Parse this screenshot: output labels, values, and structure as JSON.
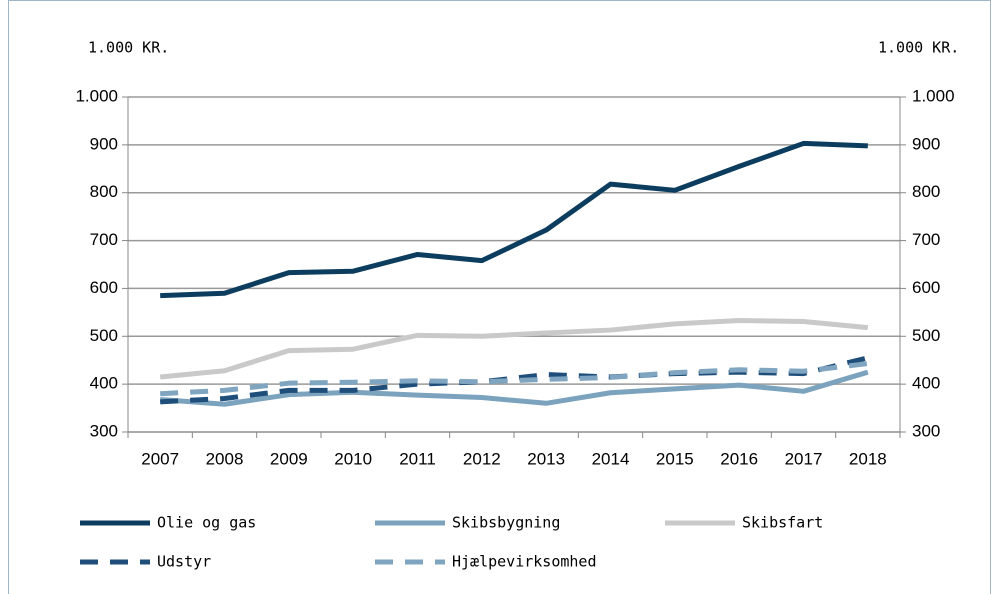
{
  "chart_data": {
    "type": "line",
    "y_unit_label": "1.000 KR.",
    "y2_unit_label": "1.000 KR.",
    "categories": [
      "2007",
      "2008",
      "2009",
      "2010",
      "2011",
      "2012",
      "2013",
      "2014",
      "2015",
      "2016",
      "2017",
      "2018"
    ],
    "series": [
      {
        "name": "Olie og gas",
        "color": "#0d3d5e",
        "dashed": false,
        "values": [
          585,
          590,
          633,
          636,
          671,
          658,
          722,
          818,
          805,
          855,
          903,
          898
        ]
      },
      {
        "name": "Skibsbygning",
        "color": "#7ba3be",
        "dashed": false,
        "values": [
          368,
          358,
          378,
          383,
          377,
          372,
          360,
          382,
          390,
          398,
          385,
          425
        ]
      },
      {
        "name": "Skibsfart",
        "color": "#c9c9c9",
        "dashed": false,
        "values": [
          415,
          428,
          470,
          473,
          502,
          500,
          507,
          513,
          526,
          533,
          531,
          518
        ]
      },
      {
        "name": "Udstyr",
        "color": "#1f4e7a",
        "dashed": true,
        "values": [
          363,
          370,
          387,
          387,
          400,
          405,
          420,
          415,
          422,
          425,
          422,
          455
        ]
      },
      {
        "name": "Hjælpevirksomhed",
        "color": "#7fa5c0",
        "dashed": true,
        "values": [
          380,
          387,
          402,
          404,
          407,
          405,
          410,
          414,
          424,
          430,
          427,
          443
        ]
      }
    ],
    "ylim": [
      300,
      1000
    ],
    "yticks": [
      300,
      400,
      500,
      600,
      700,
      800,
      900,
      {
        "value": 1000,
        "label": "1.000"
      }
    ],
    "y2lim": [
      300,
      1000
    ],
    "y2ticks": [
      300,
      400,
      500,
      600,
      700,
      800,
      900,
      {
        "value": 1000,
        "label": "1.000"
      }
    ],
    "grid": true
  }
}
